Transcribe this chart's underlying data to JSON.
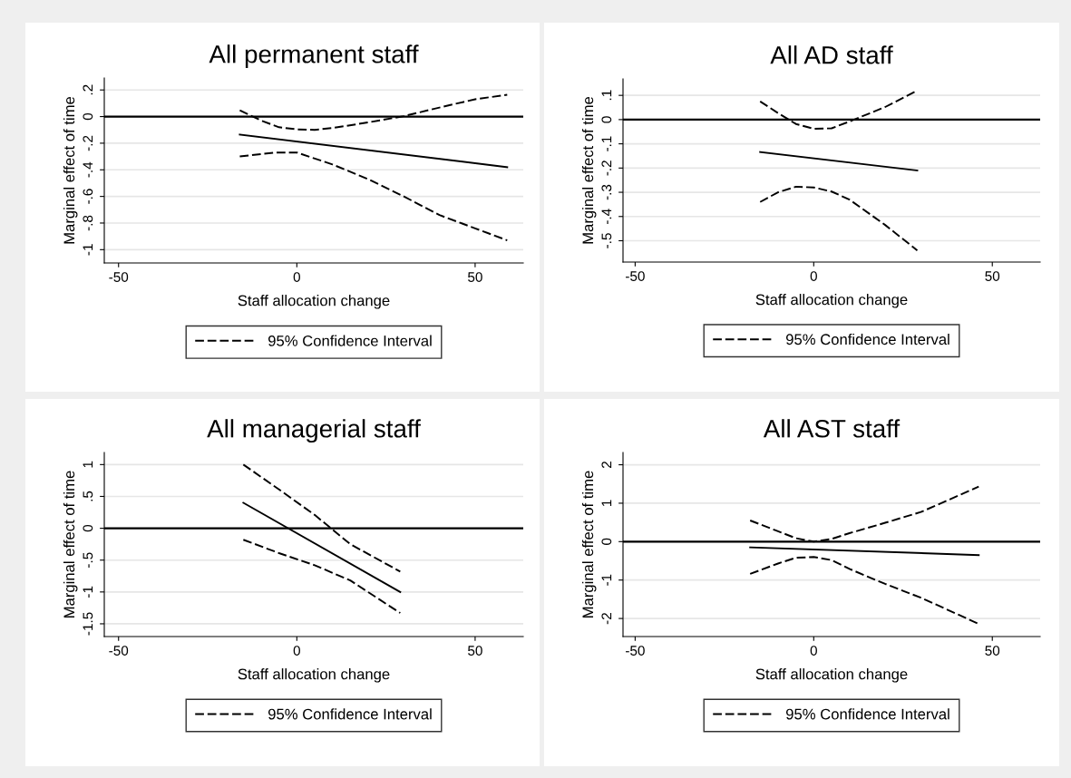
{
  "chart_data": [
    {
      "type": "line",
      "title": "All permanent staff",
      "xlabel": "Staff allocation change",
      "ylabel": "Marginal effect of time",
      "xlim": [
        -54,
        63.5
      ],
      "xticks": [
        -50,
        0,
        50
      ],
      "ylim": [
        -1.1,
        0.29
      ],
      "yticks": [
        {
          "value": -1,
          "label": "-1"
        },
        {
          "value": -0.8,
          "label": "-.8"
        },
        {
          "value": -0.6,
          "label": "-.6"
        },
        {
          "value": -0.4,
          "label": "-.4"
        },
        {
          "value": -0.2,
          "label": "-.2"
        },
        0,
        {
          "value": 0.2,
          "label": ".2"
        }
      ],
      "grid": "y",
      "legend": "bottom",
      "ref_lines": [
        {
          "axis": "y",
          "value": 0,
          "color": "#000000"
        }
      ],
      "series": [
        {
          "color": "#000000",
          "line_style": "solid",
          "x": [
            -16,
            59
          ],
          "values": [
            -0.135,
            -0.38
          ]
        },
        {
          "name": "95% Confidence Interval",
          "color": "#000000",
          "line_style": "dashed",
          "x": [
            -16,
            -10,
            -5,
            0,
            5,
            10,
            20,
            30,
            40,
            50,
            59
          ],
          "values": [
            0.047,
            -0.03,
            -0.08,
            -0.096,
            -0.1,
            -0.086,
            -0.044,
            0.003,
            0.068,
            0.13,
            0.164
          ]
        },
        {
          "color": "#000000",
          "line_style": "dashed",
          "x": [
            -16,
            -6,
            0,
            10,
            20,
            30,
            40,
            50,
            59
          ],
          "values": [
            -0.3,
            -0.27,
            -0.27,
            -0.36,
            -0.47,
            -0.6,
            -0.74,
            -0.84,
            -0.93
          ]
        }
      ]
    },
    {
      "type": "line",
      "title": "All AD staff",
      "xlabel": "Staff allocation change",
      "ylabel": "Marginal effect of time",
      "xlim": [
        -53.4,
        63.4
      ],
      "xticks": [
        -50,
        0,
        50
      ],
      "ylim": [
        -0.588,
        0.168
      ],
      "yticks": [
        {
          "value": -0.5,
          "label": "-.5"
        },
        {
          "value": -0.4,
          "label": "-.4"
        },
        {
          "value": -0.3,
          "label": "-.3"
        },
        {
          "value": -0.2,
          "label": "-.2"
        },
        {
          "value": -0.1,
          "label": "-.1"
        },
        0,
        {
          "value": 0.1,
          "label": ".1"
        }
      ],
      "grid": "y",
      "legend": "bottom",
      "ref_lines": [
        {
          "axis": "y",
          "value": 0,
          "color": "#000000"
        }
      ],
      "series": [
        {
          "color": "#000000",
          "line_style": "solid",
          "x": [
            -15,
            29
          ],
          "values": [
            -0.134,
            -0.21
          ]
        },
        {
          "name": "95% Confidence Interval",
          "color": "#000000",
          "line_style": "dashed",
          "x": [
            -15,
            -10,
            -5,
            0,
            5,
            10,
            20,
            29
          ],
          "values": [
            0.075,
            0.027,
            -0.018,
            -0.038,
            -0.036,
            -0.008,
            0.052,
            0.12
          ]
        },
        {
          "color": "#000000",
          "line_style": "dashed",
          "x": [
            -15,
            -10,
            -5,
            0,
            5,
            10,
            20,
            29
          ],
          "values": [
            -0.34,
            -0.3,
            -0.277,
            -0.28,
            -0.297,
            -0.33,
            -0.435,
            -0.54
          ]
        }
      ]
    },
    {
      "type": "line",
      "title": "All managerial staff",
      "xlabel": "Staff allocation change",
      "ylabel": "Marginal effect of time",
      "xlim": [
        -54,
        63.5
      ],
      "xticks": [
        -50,
        0,
        50
      ],
      "ylim": [
        -1.7,
        1.19
      ],
      "yticks": [
        {
          "value": -1.5,
          "label": "-1.5"
        },
        {
          "value": -1,
          "label": "-1"
        },
        {
          "value": -0.5,
          "label": "-.5"
        },
        0,
        {
          "value": 0.5,
          "label": ".5"
        },
        1
      ],
      "grid": "y",
      "legend": "bottom",
      "ref_lines": [
        {
          "axis": "y",
          "value": 0,
          "color": "#000000"
        }
      ],
      "series": [
        {
          "color": "#000000",
          "line_style": "solid",
          "x": [
            -15,
            29
          ],
          "values": [
            0.4,
            -1.0
          ]
        },
        {
          "name": "95% Confidence Interval",
          "color": "#000000",
          "line_style": "dashed",
          "x": [
            -15,
            -5,
            5,
            15,
            29
          ],
          "values": [
            1.0,
            0.61,
            0.21,
            -0.25,
            -0.68
          ]
        },
        {
          "color": "#000000",
          "line_style": "dashed",
          "x": [
            -15,
            -5,
            5,
            15,
            29
          ],
          "values": [
            -0.18,
            -0.39,
            -0.58,
            -0.82,
            -1.33
          ]
        }
      ]
    },
    {
      "type": "line",
      "title": "All AST staff",
      "xlabel": "Staff allocation change",
      "ylabel": "Marginal effect of time",
      "xlim": [
        -53.4,
        63.4
      ],
      "xticks": [
        -50,
        0,
        50
      ],
      "ylim": [
        -2.47,
        2.32
      ],
      "yticks": [
        -2,
        -1,
        0,
        1,
        2
      ],
      "grid": "y",
      "legend": "bottom",
      "ref_lines": [
        {
          "axis": "y",
          "value": 0,
          "color": "#000000"
        }
      ],
      "series": [
        {
          "color": "#000000",
          "line_style": "solid",
          "x": [
            -17.8,
            46.2
          ],
          "values": [
            -0.15,
            -0.35
          ]
        },
        {
          "name": "95% Confidence Interval",
          "color": "#000000",
          "line_style": "dashed",
          "x": [
            -17.8,
            -10,
            -5,
            0,
            5,
            10,
            20,
            30,
            46.2
          ],
          "values": [
            0.55,
            0.27,
            0.09,
            0.0,
            0.07,
            0.22,
            0.49,
            0.77,
            1.43
          ]
        },
        {
          "color": "#000000",
          "line_style": "dashed",
          "x": [
            -17.8,
            -10,
            -5,
            0,
            5,
            10,
            20,
            30,
            46.2
          ],
          "values": [
            -0.84,
            -0.57,
            -0.42,
            -0.4,
            -0.48,
            -0.71,
            -1.1,
            -1.46,
            -2.14
          ]
        }
      ]
    }
  ]
}
